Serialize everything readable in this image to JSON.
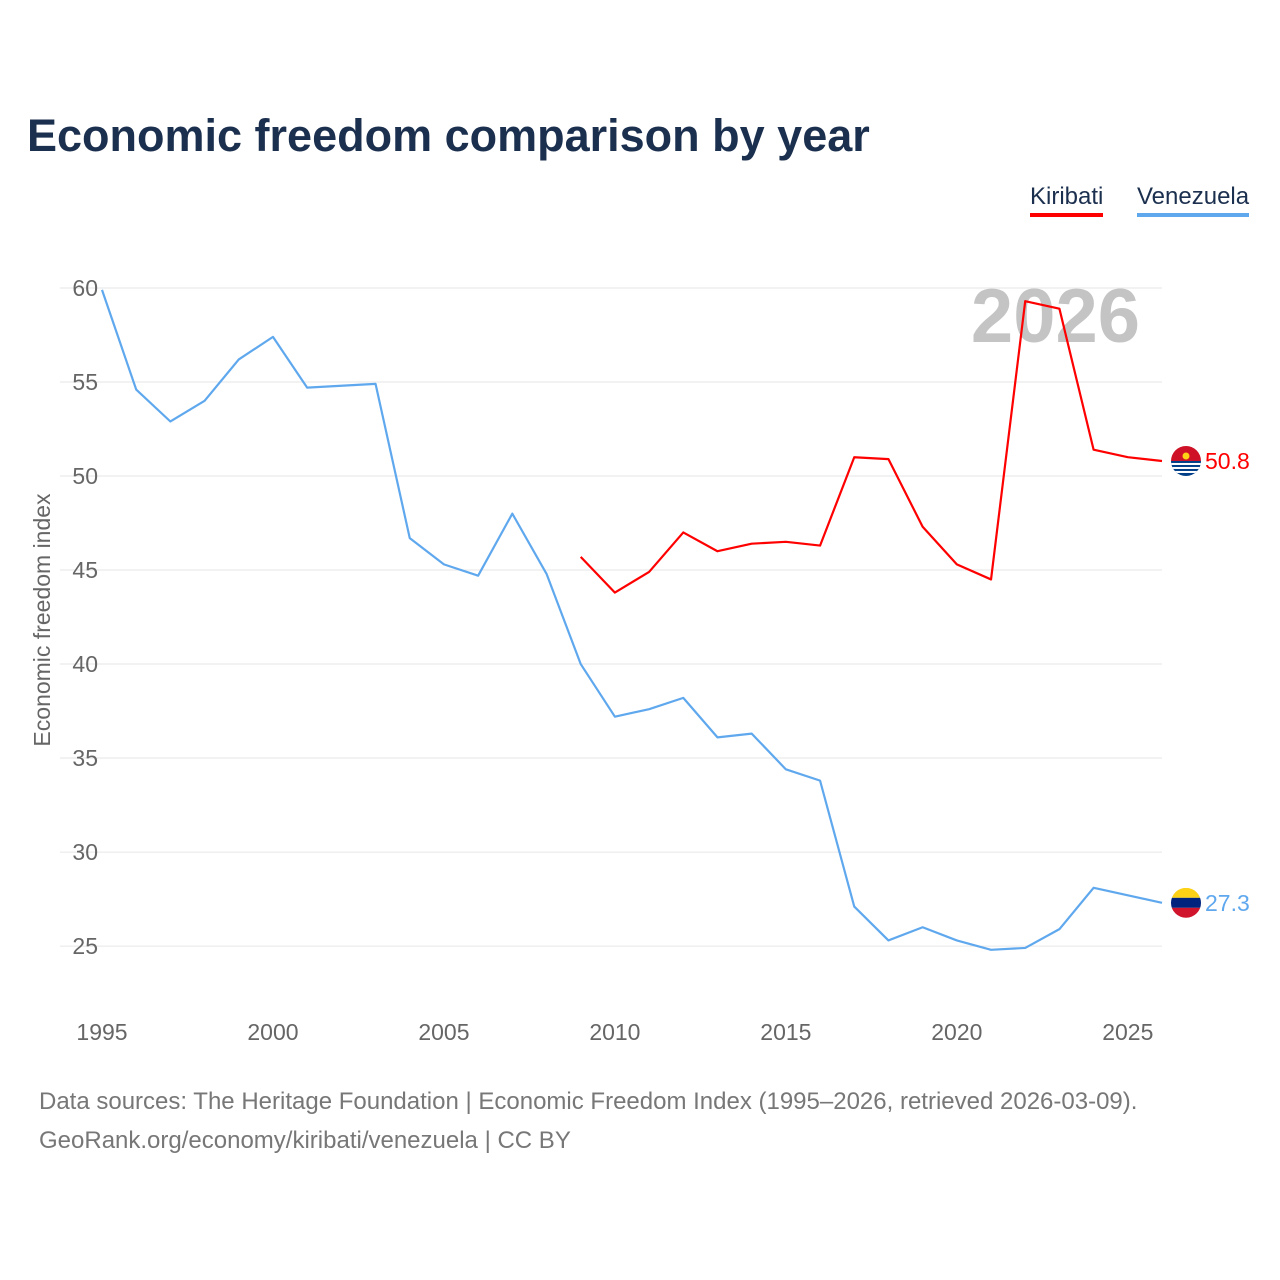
{
  "chart_data": {
    "type": "line",
    "title": "Economic freedom comparison by year",
    "xlabel": "",
    "ylabel": "Economic freedom index",
    "xlim": [
      1995,
      2026
    ],
    "ylim": [
      21.6,
      60
    ],
    "grid": true,
    "legend_placement": "top-right",
    "year_watermark": "2026",
    "x_ticks": [
      1995,
      2000,
      2005,
      2010,
      2015,
      2020,
      2025
    ],
    "y_ticks": [
      25,
      30,
      35,
      40,
      45,
      50,
      55,
      60
    ],
    "series": [
      {
        "name": "Kiribati",
        "color": "#ff0000",
        "end_label": "50.8",
        "x": [
          2009,
          2010,
          2011,
          2012,
          2013,
          2014,
          2015,
          2016,
          2017,
          2018,
          2019,
          2020,
          2021,
          2022,
          2023,
          2024,
          2025,
          2026
        ],
        "values": [
          45.7,
          43.8,
          44.9,
          47.0,
          46.0,
          46.4,
          46.5,
          46.3,
          51.0,
          50.9,
          47.3,
          45.3,
          44.5,
          59.3,
          58.9,
          51.4,
          51.0,
          50.8
        ]
      },
      {
        "name": "Venezuela",
        "color": "#5fa8ee",
        "end_label": "27.3",
        "x": [
          1995,
          1996,
          1997,
          1998,
          1999,
          2000,
          2001,
          2002,
          2003,
          2004,
          2005,
          2006,
          2007,
          2008,
          2009,
          2010,
          2011,
          2012,
          2013,
          2014,
          2015,
          2016,
          2017,
          2018,
          2019,
          2020,
          2021,
          2022,
          2023,
          2024,
          2025,
          2026
        ],
        "values": [
          59.9,
          54.6,
          52.9,
          54.0,
          56.2,
          57.4,
          54.7,
          54.8,
          54.9,
          46.7,
          45.3,
          44.7,
          48.0,
          44.8,
          40.0,
          37.2,
          37.6,
          38.2,
          36.1,
          36.3,
          34.4,
          33.8,
          27.1,
          25.3,
          26.0,
          25.3,
          24.8,
          24.9,
          25.9,
          28.1,
          27.7,
          27.3
        ]
      }
    ]
  },
  "footer": {
    "line1": "Data sources: The Heritage Foundation | Economic Freedom Index (1995–2026, retrieved 2026-03-09).",
    "line2": "GeoRank.org/economy/kiribati/venezuela | CC BY"
  }
}
